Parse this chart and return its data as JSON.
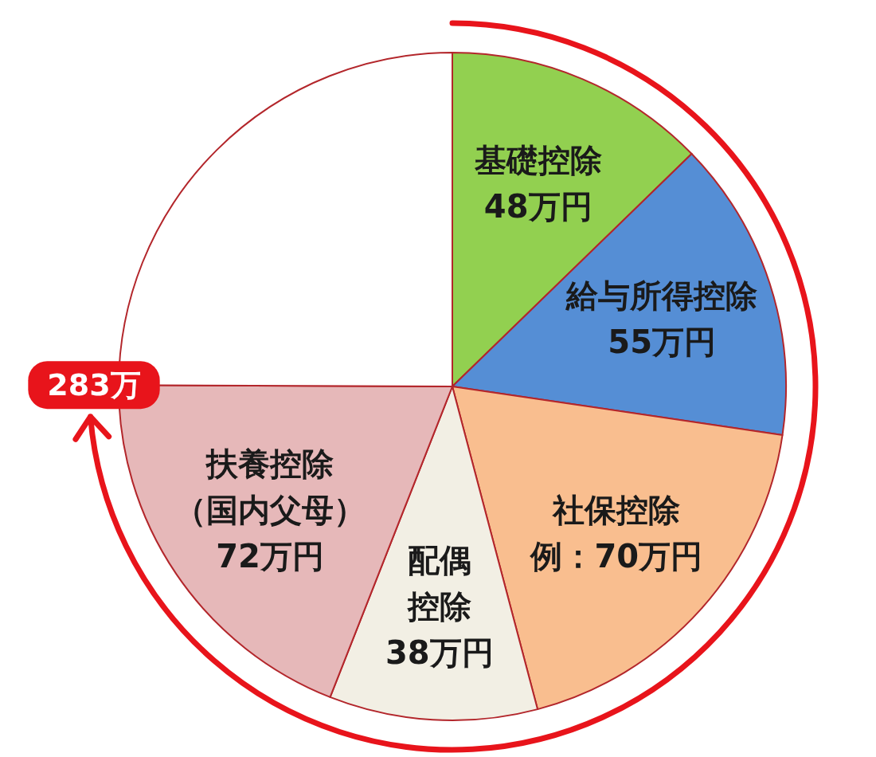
{
  "chart_data": {
    "type": "pie",
    "categories": [
      "基礎控除",
      "給与所得控除",
      "社保控除",
      "配偶控除",
      "扶養控除（国内父母）",
      null
    ],
    "values": [
      48,
      55,
      70,
      38,
      72,
      94
    ],
    "colors": [
      "#92d050",
      "#558ed5",
      "#f9be8f",
      "#f2efe4",
      "#e6b8b9",
      "#ffffff"
    ],
    "value_labels": [
      "48万円",
      "55万円",
      "例：70万円",
      "38万円",
      "72万円",
      null
    ],
    "annotations": [
      "283万"
    ]
  }
}
